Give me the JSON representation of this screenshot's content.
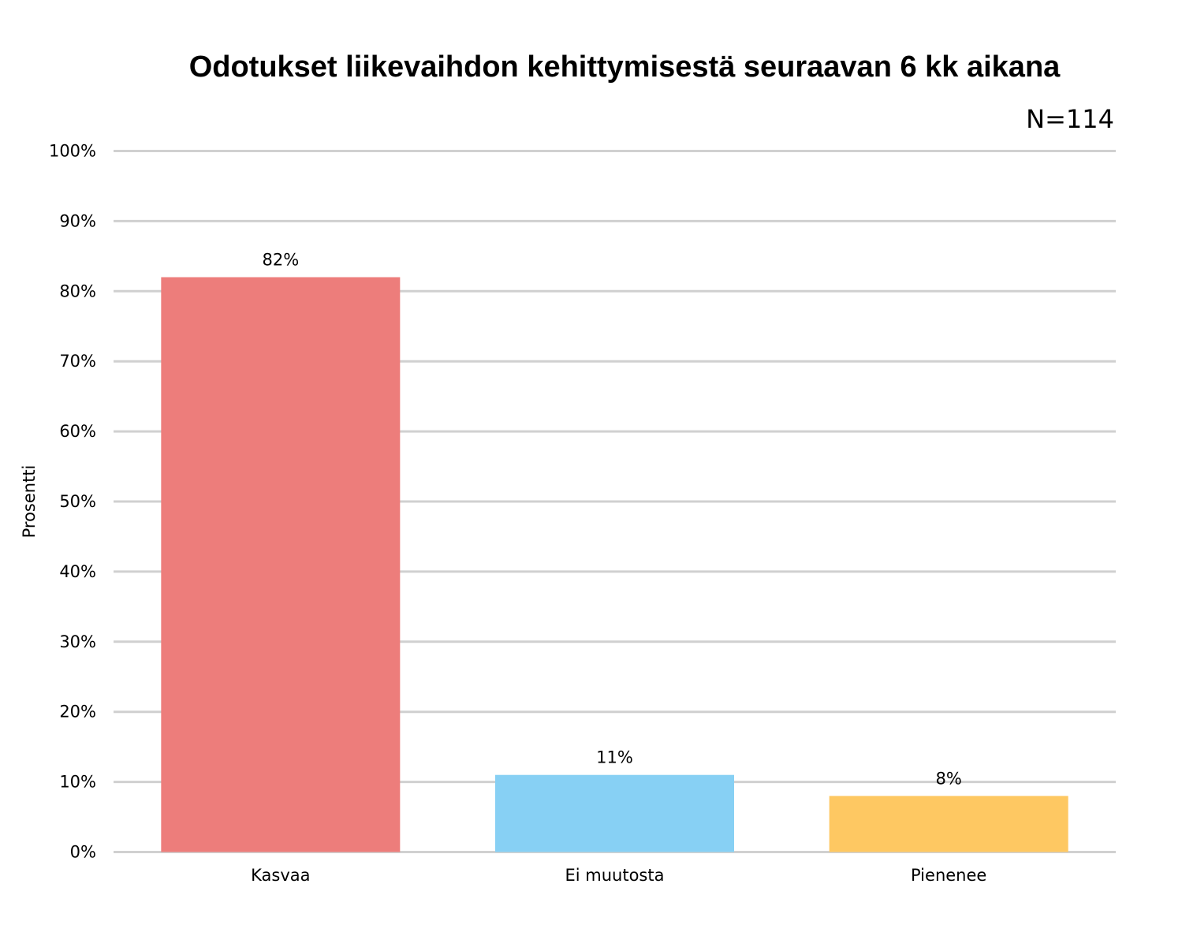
{
  "chart_data": {
    "type": "bar",
    "title": "Odotukset liikevaihdon kehittymisestä seuraavan 6 kk aikana",
    "subtitle": "N=114",
    "xlabel": "",
    "ylabel": "Prosentti",
    "categories": [
      "Kasvaa",
      "Ei muutosta",
      "Pienenee"
    ],
    "values": [
      82,
      11,
      8
    ],
    "data_labels": [
      "82%",
      "11%",
      "8%"
    ],
    "colors": [
      "#ed7d7b",
      "#87d0f4",
      "#fec862"
    ],
    "ylim": [
      0,
      100
    ],
    "yticks": [
      0,
      10,
      20,
      30,
      40,
      50,
      60,
      70,
      80,
      90,
      100
    ],
    "ytick_labels": [
      "0%",
      "10%",
      "20%",
      "30%",
      "40%",
      "50%",
      "60%",
      "70%",
      "80%",
      "90%",
      "100%"
    ],
    "grid": true,
    "legend": "none"
  }
}
